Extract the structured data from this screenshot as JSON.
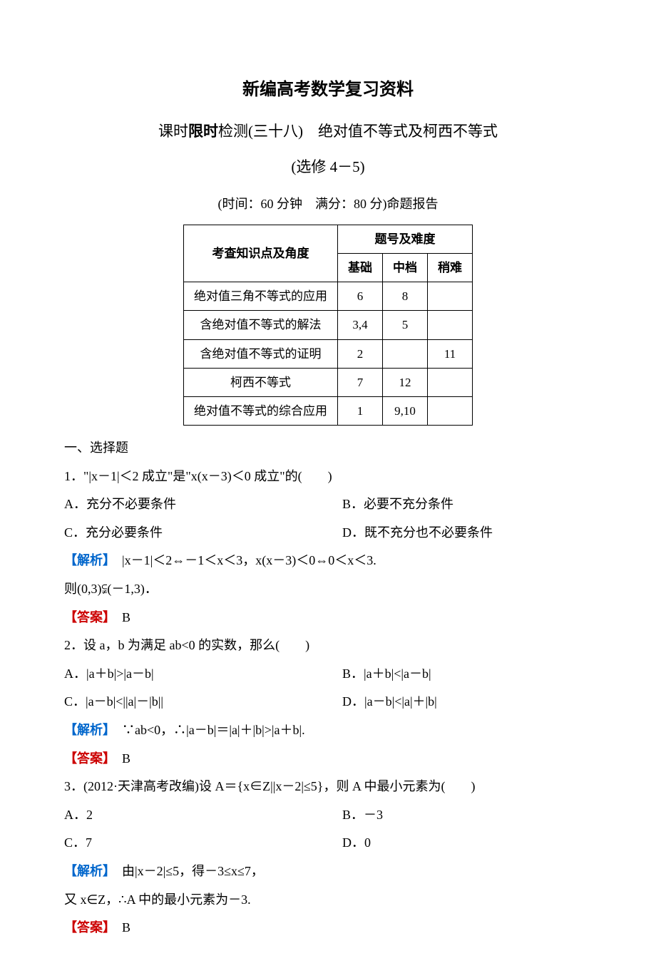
{
  "main_title": "新编高考数学复习资料",
  "subtitle_pre": "课时",
  "subtitle_bold": "限时",
  "subtitle_post": "检测(三十八)　绝对值不等式及柯西不等式",
  "subtitle2": "(选修 4－5)",
  "exam_info": "(时间：60 分钟　满分：80 分)命题报告",
  "table": {
    "header_topic": "考查知识点及角度",
    "header_difficulty": "题号及难度",
    "col_basic": "基础",
    "col_medium": "中档",
    "col_hard": "稍难",
    "rows": [
      {
        "topic": "绝对值三角不等式的应用",
        "basic": "6",
        "medium": "8",
        "hard": ""
      },
      {
        "topic": "含绝对值不等式的解法",
        "basic": "3,4",
        "medium": "5",
        "hard": ""
      },
      {
        "topic": "含绝对值不等式的证明",
        "basic": "2",
        "medium": "",
        "hard": "11"
      },
      {
        "topic": "柯西不等式",
        "basic": "7",
        "medium": "12",
        "hard": ""
      },
      {
        "topic": "绝对值不等式的综合应用",
        "basic": "1",
        "medium": "9,10",
        "hard": ""
      }
    ]
  },
  "section1": "一、选择题",
  "q1": {
    "stem": "1．\"|x－1|＜2 成立\"是\"x(x－3)＜0 成立\"的(　　)",
    "optA": "A．充分不必要条件",
    "optB": "B．必要不充分条件",
    "optC": "C．充分必要条件",
    "optD": "D．既不充分也不必要条件",
    "analysis_label": "【解析】",
    "analysis": "　|x－1|＜2⇔－1＜x＜3，x(x－3)＜0⇔0＜x＜3.",
    "analysis2": "则(0,3)⫋(－1,3)．",
    "answer_label": "【答案】",
    "answer": "　B"
  },
  "q2": {
    "stem": "2．设 a，b 为满足 ab<0 的实数，那么(　　)",
    "optA": "A．|a＋b|>|a－b|",
    "optB": "B．|a＋b|<|a－b|",
    "optC": "C．|a－b|<||a|－|b||",
    "optD": "D．|a－b|<|a|＋|b|",
    "analysis_label": "【解析】",
    "analysis": "　∵ab<0，∴|a－b|＝|a|＋|b|>|a＋b|.",
    "answer_label": "【答案】",
    "answer": "　B"
  },
  "q3": {
    "stem": "3．(2012·天津高考改编)设 A＝{x∈Z||x－2|≤5}，则 A 中最小元素为(　　)",
    "optA": "A．2",
    "optB": "B．－3",
    "optC": "C．7",
    "optD": "D．0",
    "analysis_label": "【解析】",
    "analysis": "　由|x－2|≤5，得－3≤x≤7，",
    "analysis2": "又 x∈Z，∴A 中的最小元素为－3.",
    "answer_label": "【答案】",
    "answer": "　B"
  }
}
